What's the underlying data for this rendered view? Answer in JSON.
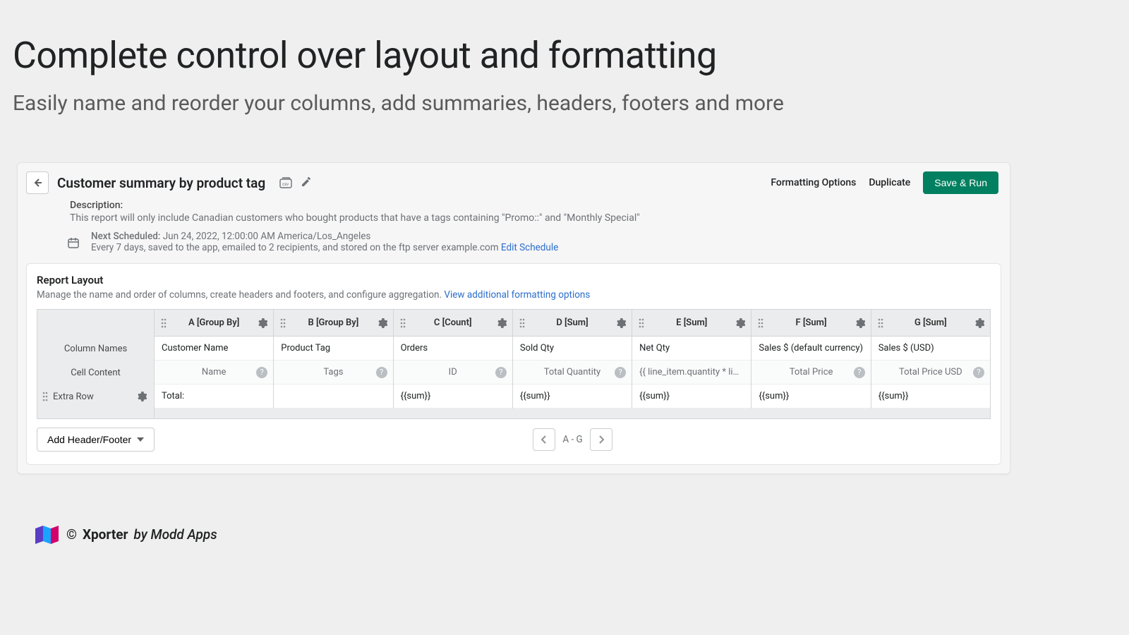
{
  "headline": "Complete control over layout and formatting",
  "subheadline": "Easily name and reorder your columns, add summaries, headers, footers and more",
  "header": {
    "title": "Customer summary by product tag",
    "formatting_options": "Formatting Options",
    "duplicate": "Duplicate",
    "save_run": "Save & Run"
  },
  "description": {
    "label": "Description:",
    "text": "This report will only include Canadian customers who bought products that have a tags containing \"Promo::\" and \"Monthly Special\""
  },
  "schedule": {
    "label": "Next Scheduled:",
    "value": "Jun 24, 2022, 12:00:00 AM America/Los_Angeles",
    "detail": "Every 7 days, saved to the app, emailed to 2 recipients, and stored on the ftp server example.com ",
    "edit_link": "Edit Schedule"
  },
  "layout": {
    "title": "Report Layout",
    "desc_prefix": "Manage the name and order of columns, create headers and footers, and configure aggregation. ",
    "view_more": "View additional formatting options",
    "row_labels": {
      "column_names": "Column Names",
      "cell_content": "Cell Content",
      "extra_row": "Extra Row"
    },
    "columns": [
      {
        "header": "A [Group By]",
        "name": "Customer Name",
        "content": "Name",
        "extra": "Total:",
        "has_help": true
      },
      {
        "header": "B [Group By]",
        "name": "Product Tag",
        "content": "Tags",
        "extra": "",
        "has_help": true
      },
      {
        "header": "C [Count]",
        "name": "Orders",
        "content": "ID",
        "extra": "{{sum}}",
        "has_help": true
      },
      {
        "header": "D [Sum]",
        "name": "Sold Qty",
        "content": "Total Quantity",
        "extra": "{{sum}}",
        "has_help": true
      },
      {
        "header": "E [Sum]",
        "name": "Net Qty",
        "content": "{{ line_item.quantity * line_it",
        "extra": "{{sum}}",
        "has_help": false
      },
      {
        "header": "F [Sum]",
        "name": "Sales $ (default currency)",
        "content": "Total Price",
        "extra": "{{sum}}",
        "has_help": true
      },
      {
        "header": "G [Sum]",
        "name": "Sales $ (USD)",
        "content": "Total Price USD",
        "extra": "{{sum}}",
        "has_help": true
      }
    ],
    "add_header_footer": "Add Header/Footer",
    "pager_label": "A - G"
  },
  "brand": {
    "copyright": "©",
    "name": "Xporter",
    "by": "by Modd Apps"
  },
  "colors": {
    "primary": "#008060",
    "link": "#2c6ecb",
    "panel_bg": "#ffffff",
    "page_bg": "#efefef",
    "header_bg": "#ebeced",
    "border": "#d2d5d8",
    "muted_text": "#6d7175"
  }
}
